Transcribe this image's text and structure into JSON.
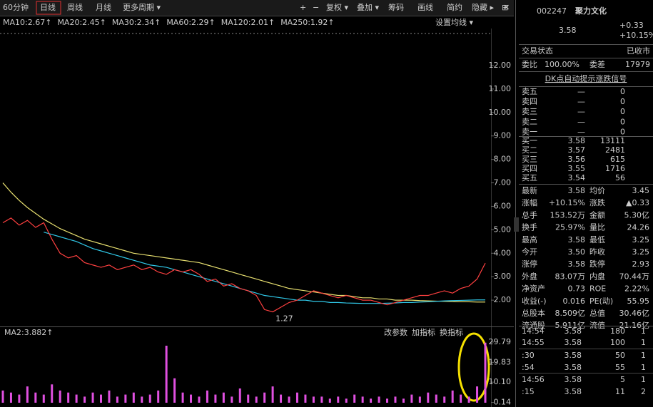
{
  "toolbar": {
    "periods": [
      "60分钟",
      "日线",
      "周线",
      "月线",
      "更多周期 ▾"
    ],
    "tools": [
      "+",
      "−",
      "复权 ▾",
      "叠加 ▾",
      "筹码",
      "画线",
      "简约",
      "隐藏 ▸",
      "⊞",
      "✕"
    ]
  },
  "chart_data": [
    {
      "type": "line",
      "legend": [
        {
          "text": "MA10:2.67↑",
          "color": "#f0e040"
        },
        {
          "text": "MA20:2.45↑",
          "color": "#ff40ff"
        },
        {
          "text": "MA30:2.34↑",
          "color": "#40e040"
        },
        {
          "text": "MA60:2.29↑",
          "color": "#cccccc"
        },
        {
          "text": "MA120:2.01↑",
          "color": "#30c8e8"
        },
        {
          "text": "MA250:1.92↑",
          "color": "#f0e040"
        }
      ],
      "settings_label": "设置均线 ▾",
      "annotation": "1.27",
      "ylim": [
        0.97,
        13.58
      ],
      "yticks": [
        {
          "value": 12,
          "label": "12.00"
        },
        {
          "value": 11,
          "label": "11.00"
        },
        {
          "value": 10,
          "label": "10.00"
        },
        {
          "value": 9,
          "label": "9.00"
        },
        {
          "value": 8,
          "label": "8.00"
        },
        {
          "value": 7,
          "label": "7.00"
        },
        {
          "value": 6,
          "label": "6.00"
        },
        {
          "value": 5,
          "label": "5.00"
        },
        {
          "value": 4,
          "label": "4.00"
        },
        {
          "value": 3,
          "label": "3.00"
        },
        {
          "value": 2,
          "label": "2.00"
        }
      ],
      "series": [
        {
          "color": "#e8e070",
          "values": [
            7.0,
            6.6,
            6.25,
            5.95,
            5.7,
            5.45,
            5.25,
            5.05,
            4.9,
            4.75,
            4.6,
            4.5,
            4.4,
            4.3,
            4.2,
            4.1,
            4.0,
            3.95,
            3.9,
            3.85,
            3.8,
            3.75,
            3.7,
            3.65,
            3.6,
            3.5,
            3.4,
            3.3,
            3.2,
            3.1,
            3.0,
            2.9,
            2.8,
            2.7,
            2.6,
            2.5,
            2.45,
            2.4,
            2.35,
            2.3,
            2.25,
            2.2,
            2.2,
            2.15,
            2.1,
            2.1,
            2.05,
            2.05,
            2.0,
            2.0,
            2.0,
            1.98,
            1.97,
            1.96,
            1.95,
            1.94,
            1.93,
            1.93,
            1.92,
            1.92
          ]
        },
        {
          "color": "#30c8e8",
          "values": [
            null,
            null,
            null,
            null,
            null,
            4.9,
            4.8,
            4.7,
            4.6,
            4.5,
            4.35,
            4.2,
            4.1,
            4.0,
            3.9,
            3.8,
            3.7,
            3.6,
            3.5,
            3.45,
            3.4,
            3.3,
            3.2,
            3.1,
            3.0,
            2.9,
            2.8,
            2.7,
            2.6,
            2.5,
            2.4,
            2.3,
            2.2,
            2.15,
            2.1,
            2.05,
            2.0,
            2.0,
            1.95,
            1.95,
            1.9,
            1.9,
            1.88,
            1.87,
            1.86,
            1.86,
            1.86,
            1.87,
            1.88,
            1.9,
            1.9,
            1.92,
            1.93,
            1.95,
            1.97,
            1.98,
            1.99,
            2.0,
            2.01,
            2.01
          ]
        },
        {
          "color": "#ff4040",
          "values": [
            5.3,
            5.5,
            5.2,
            5.4,
            5.1,
            5.3,
            4.6,
            4.0,
            3.8,
            3.9,
            3.6,
            3.5,
            3.4,
            3.5,
            3.3,
            3.4,
            3.5,
            3.3,
            3.4,
            3.2,
            3.1,
            3.3,
            3.2,
            3.3,
            3.1,
            2.8,
            2.9,
            2.6,
            2.7,
            2.5,
            2.4,
            2.2,
            1.6,
            1.5,
            1.7,
            1.9,
            2.0,
            2.2,
            2.4,
            2.3,
            2.2,
            2.1,
            2.2,
            2.1,
            2.0,
            2.0,
            1.9,
            1.8,
            1.9,
            2.0,
            2.1,
            2.2,
            2.2,
            2.3,
            2.4,
            2.3,
            2.5,
            2.6,
            2.9,
            3.58
          ]
        }
      ]
    },
    {
      "type": "volume",
      "indicator": "MA2:3.882↑",
      "buttons": [
        "改参数",
        "加指标",
        "换指标"
      ],
      "ylim": [
        0,
        31.5
      ],
      "yticks": [
        29.79,
        19.83,
        {
          "value": 10.1,
          "label": "10.10"
        },
        0.14
      ],
      "color": "#e050e0",
      "values": [
        6,
        5,
        4,
        8,
        5,
        4,
        9,
        6,
        5,
        4,
        3,
        5,
        4,
        6,
        3,
        4,
        5,
        3,
        4,
        6,
        28,
        12,
        5,
        4,
        3,
        6,
        4,
        5,
        3,
        7,
        4,
        3,
        5,
        8,
        4,
        3,
        5,
        4,
        3,
        3,
        2,
        3,
        2,
        4,
        3,
        2,
        3,
        2,
        3,
        2,
        4,
        3,
        5,
        4,
        3,
        6,
        4,
        3,
        8,
        29.5
      ]
    }
  ],
  "quote": {
    "code": "002247",
    "name": "聚力文化",
    "price": "3.58",
    "change": "+0.33",
    "change_pct": "+10.15%"
  },
  "status": [
    "交易状态",
    "已收市"
  ],
  "commission": [
    "委比",
    "100.00%",
    "委差",
    "17979"
  ],
  "signal": "DK点自动提示涨跌信号",
  "book": [
    [
      "卖五",
      "—",
      "0"
    ],
    [
      "卖四",
      "—",
      "0"
    ],
    [
      "卖三",
      "—",
      "0"
    ],
    [
      "卖二",
      "—",
      "0"
    ],
    [
      "卖一",
      "—",
      "0"
    ],
    [
      "买一",
      "3.58",
      "13111"
    ],
    [
      "买二",
      "3.57",
      "2481"
    ],
    [
      "买三",
      "3.56",
      "615"
    ],
    [
      "买四",
      "3.55",
      "1716"
    ],
    [
      "买五",
      "3.54",
      "56"
    ]
  ],
  "stats": {
    "rows": [
      [
        "最新",
        "3.58",
        "均价",
        "3.45"
      ],
      [
        "涨幅",
        "+10.15%",
        "涨跌",
        "▲0.33"
      ],
      [
        "总手",
        "153.52万",
        "金额",
        "5.30亿"
      ],
      [
        "换手",
        "25.97%",
        "量比",
        "24.26"
      ],
      [
        "最高",
        "3.58",
        "最低",
        "3.25"
      ],
      [
        "今开",
        "3.50",
        "昨收",
        "3.25"
      ],
      [
        "涨停",
        "3.58",
        "跌停",
        "2.93"
      ],
      [
        "外盘",
        "83.07万",
        "内盘",
        "70.44万"
      ],
      [
        "净资产",
        "0.73",
        "ROE",
        "2.22%"
      ],
      [
        "收益(-)",
        "0.016",
        "PE(动)",
        "55.95"
      ],
      [
        "总股本",
        "8.509亿",
        "总值",
        "30.46亿"
      ],
      [
        "流通股",
        "5.911亿",
        "流值",
        "21.16亿"
      ]
    ],
    "colors": [
      [
        "#ff4040",
        "#ff4040"
      ],
      [
        "#ff4040",
        "#ff4040"
      ],
      [
        "#dddddd",
        "#30d8f0"
      ],
      [
        "#dddddd",
        "#ff4040"
      ],
      [
        "#ff4040",
        "#dddddd"
      ],
      [
        "#ff4040",
        "#dddddd"
      ],
      [
        "#ff4040",
        "#30d040"
      ],
      [
        "#ff4040",
        "#30d040"
      ],
      [
        "#dddddd",
        "#dddddd"
      ],
      [
        "#dddddd",
        "#dddddd"
      ],
      [
        "#dddddd",
        "#dddddd"
      ],
      [
        "#dddddd",
        "#dddddd"
      ]
    ]
  },
  "ticks": [
    [
      "14:54",
      "3.58",
      "180",
      "1"
    ],
    [
      "14:55",
      "3.58",
      "100",
      "1"
    ],
    [
      ":30",
      "3.58",
      "50",
      "1"
    ],
    [
      ":54",
      "3.58",
      "55",
      "1"
    ],
    [
      "14:56",
      "3.58",
      "5",
      "1"
    ],
    [
      ":15",
      "3.58",
      "11",
      "2"
    ]
  ]
}
